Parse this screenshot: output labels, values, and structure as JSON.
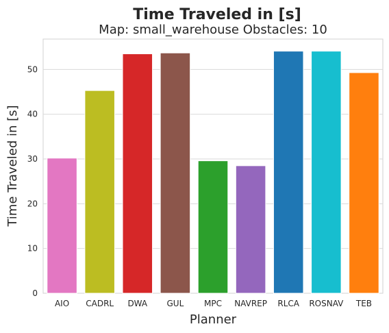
{
  "chart_data": {
    "type": "bar",
    "title": "Time Traveled in [s]",
    "subtitle": "Map: small_warehouse Obstacles: 10",
    "xlabel": "Planner",
    "ylabel": "Time Traveled in [s]",
    "categories": [
      "AIO",
      "CADRL",
      "DWA",
      "GUL",
      "MPC",
      "NAVREP",
      "RLCA",
      "ROSNAV",
      "TEB"
    ],
    "values": [
      30.2,
      45.3,
      53.5,
      53.7,
      29.6,
      28.5,
      54.1,
      54.1,
      49.3
    ],
    "colors": [
      "#e377c2",
      "#bcbd22",
      "#d62728",
      "#8c564b",
      "#2ca02c",
      "#9467bd",
      "#1f77b4",
      "#17becf",
      "#ff7f0e"
    ],
    "ylim": [
      0,
      56.8
    ],
    "yticks": [
      "0",
      "10",
      "20",
      "30",
      "40",
      "50"
    ],
    "grid": "horizontal",
    "legend": "none"
  }
}
